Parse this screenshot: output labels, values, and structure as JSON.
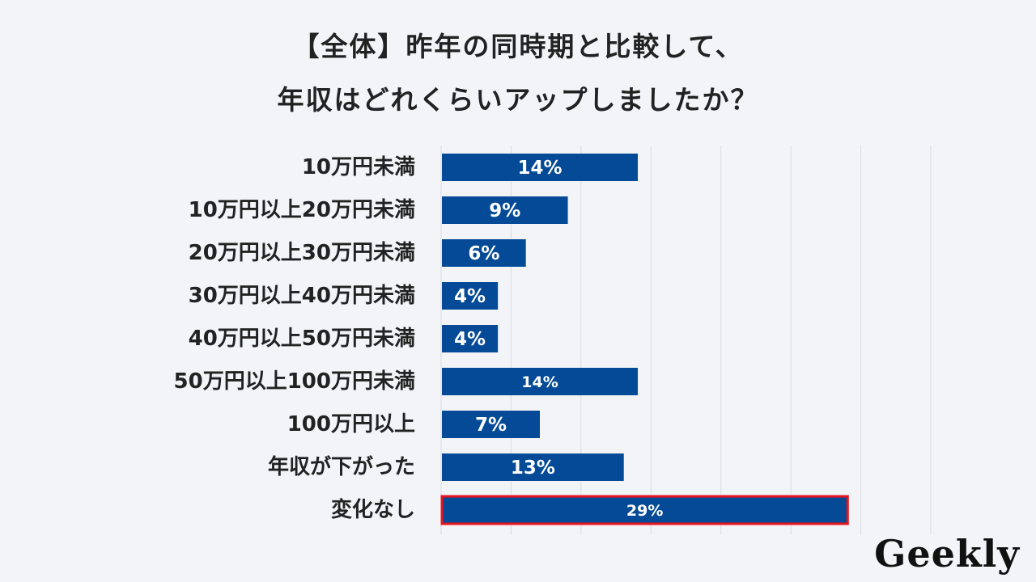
{
  "title": {
    "line1": "【全体】昨年の同時期と比較して、",
    "line2": "年収はどれくらいアップしましたか？"
  },
  "logo": "Geekly",
  "chart_data": {
    "type": "bar",
    "orientation": "horizontal",
    "categories": [
      "10万円未満",
      "10万円以上20万円未満",
      "20万円以上30万円未満",
      "30万円以上40万円未満",
      "40万円以上50万円未満",
      "50万円以上100万円未満",
      "100万円以上",
      "年収が下がった",
      "変化なし"
    ],
    "values": [
      14,
      9,
      6,
      4,
      4,
      14,
      7,
      13,
      29
    ],
    "value_labels": [
      "14%",
      "9%",
      "6%",
      "4%",
      "4%",
      "14%",
      "7%",
      "13%",
      "29%"
    ],
    "unit": "%",
    "xlim": [
      0,
      35
    ],
    "grid": true,
    "highlight_index": 8,
    "colors": {
      "bar": "#044a96",
      "highlight_border": "#e8141c",
      "grid": "#d9dce3"
    }
  }
}
